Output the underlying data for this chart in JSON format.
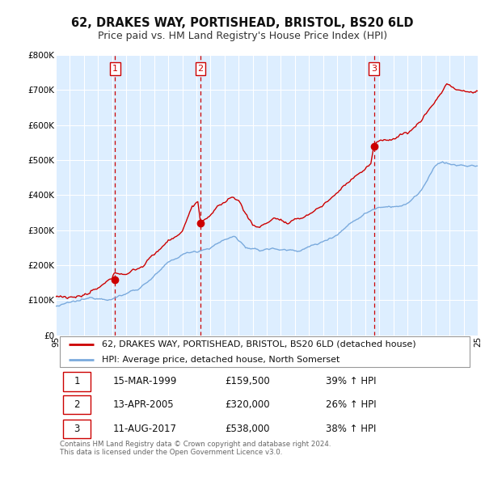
{
  "title": "62, DRAKES WAY, PORTISHEAD, BRISTOL, BS20 6LD",
  "subtitle": "Price paid vs. HM Land Registry's House Price Index (HPI)",
  "ylim": [
    0,
    800000
  ],
  "yticks": [
    0,
    100000,
    200000,
    300000,
    400000,
    500000,
    600000,
    700000,
    800000
  ],
  "ytick_labels": [
    "£0",
    "£100K",
    "£200K",
    "£300K",
    "£400K",
    "£500K",
    "£600K",
    "£700K",
    "£800K"
  ],
  "x_start_year": 1995,
  "x_end_year": 2025,
  "sale_color": "#cc0000",
  "hpi_color": "#7aaadd",
  "background_color": "#ddeeff",
  "plot_bg_color": "#ffffff",
  "grid_color": "#ffffff",
  "sale_points": [
    {
      "year": 1999.21,
      "value": 159500,
      "label": "1"
    },
    {
      "year": 2005.29,
      "value": 320000,
      "label": "2"
    },
    {
      "year": 2017.62,
      "value": 538000,
      "label": "3"
    }
  ],
  "legend_sale_label": "62, DRAKES WAY, PORTISHEAD, BRISTOL, BS20 6LD (detached house)",
  "legend_hpi_label": "HPI: Average price, detached house, North Somerset",
  "table_data": [
    [
      "1",
      "15-MAR-1999",
      "£159,500",
      "39% ↑ HPI"
    ],
    [
      "2",
      "13-APR-2005",
      "£320,000",
      "26% ↑ HPI"
    ],
    [
      "3",
      "11-AUG-2017",
      "£538,000",
      "38% ↑ HPI"
    ]
  ],
  "footnote": "Contains HM Land Registry data © Crown copyright and database right 2024.\nThis data is licensed under the Open Government Licence v3.0.",
  "title_fontsize": 10.5,
  "subtitle_fontsize": 9,
  "tick_fontsize": 7.5,
  "legend_fontsize": 8,
  "table_fontsize": 8.5
}
